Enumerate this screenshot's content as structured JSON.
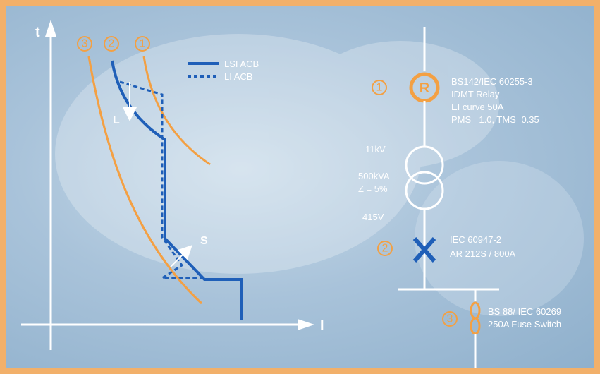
{
  "colors": {
    "frame": "#f2b06a",
    "orange": "#f3a043",
    "blue": "#1f5fb8",
    "white": "#ffffff"
  },
  "axes": {
    "y_label": "t",
    "x_label": "I"
  },
  "curve_markers": [
    "3",
    "2",
    "1"
  ],
  "legend": [
    {
      "style": "solid",
      "label": "LSI ACB"
    },
    {
      "style": "dashed",
      "label": "LI   ACB"
    }
  ],
  "curve_annotations": {
    "long_time": "L",
    "short_time": "S"
  },
  "single_line": {
    "relay": {
      "number": "1",
      "symbol": "R",
      "lines": [
        "BS142/IEC 60255-3",
        "IDMT Relay",
        "EI curve 50A",
        "PMS= 1.0, TMS=0.35"
      ]
    },
    "transformer": {
      "primary": "11kV",
      "rating": "500kVA",
      "impedance": "Z = 5%",
      "secondary": "415V"
    },
    "breaker": {
      "number": "2",
      "symbol": "X",
      "lines": [
        "IEC 60947-2",
        "AR 212S / 800A"
      ]
    },
    "fuse": {
      "number": "3",
      "lines": [
        "BS 88/ IEC 60269",
        "250A Fuse Switch"
      ]
    }
  }
}
